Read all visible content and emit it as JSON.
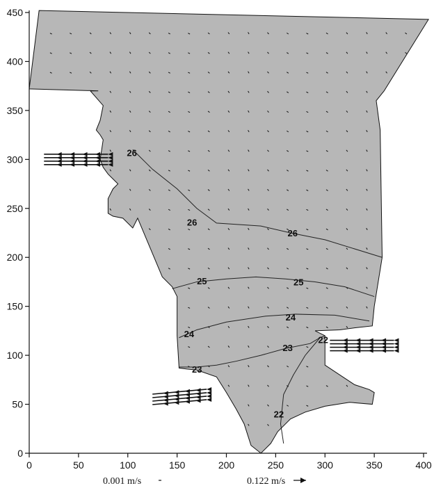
{
  "chart_data": {
    "type": "vector-contour",
    "title": "",
    "xlabel": "",
    "ylabel": "",
    "xlim": [
      0,
      400
    ],
    "ylim": [
      0,
      450
    ],
    "x_ticks": [
      "0",
      "50",
      "100",
      "150",
      "200",
      "250",
      "300",
      "350",
      "400"
    ],
    "y_ticks": [
      "0",
      "50",
      "100",
      "150",
      "200",
      "250",
      "300",
      "350",
      "400",
      "450"
    ],
    "grid": false,
    "domain_boundary": [
      [
        10,
        452
      ],
      [
        405,
        443
      ],
      [
        360,
        370
      ],
      [
        352,
        360
      ],
      [
        356,
        330
      ],
      [
        358,
        200
      ],
      [
        350,
        150
      ],
      [
        348,
        130
      ],
      [
        330,
        128
      ],
      [
        315,
        126
      ],
      [
        290,
        125
      ],
      [
        300,
        120
      ],
      [
        300,
        90
      ],
      [
        315,
        80
      ],
      [
        330,
        70
      ],
      [
        345,
        65
      ],
      [
        350,
        62
      ],
      [
        348,
        50
      ],
      [
        325,
        52
      ],
      [
        300,
        48
      ],
      [
        280,
        42
      ],
      [
        265,
        35
      ],
      [
        252,
        22
      ],
      [
        245,
        10
      ],
      [
        235,
        0
      ],
      [
        225,
        8
      ],
      [
        218,
        30
      ],
      [
        210,
        45
      ],
      [
        200,
        62
      ],
      [
        190,
        78
      ],
      [
        170,
        85
      ],
      [
        160,
        86
      ],
      [
        152,
        87
      ],
      [
        150,
        120
      ],
      [
        150,
        160
      ],
      [
        145,
        170
      ],
      [
        135,
        180
      ],
      [
        130,
        192
      ],
      [
        110,
        240
      ],
      [
        105,
        230
      ],
      [
        95,
        240
      ],
      [
        85,
        242
      ],
      [
        80,
        245
      ],
      [
        80,
        260
      ],
      [
        85,
        270
      ],
      [
        90,
        275
      ],
      [
        85,
        280
      ],
      [
        80,
        285
      ],
      [
        75,
        292
      ],
      [
        72,
        300
      ],
      [
        75,
        320
      ],
      [
        72,
        325
      ],
      [
        68,
        330
      ],
      [
        72,
        340
      ],
      [
        75,
        355
      ],
      [
        62,
        370
      ],
      [
        70,
        370
      ],
      [
        0,
        372
      ]
    ],
    "contours": [
      {
        "label": "26",
        "level": 26,
        "points": [
          [
            105,
            310
          ],
          [
            125,
            290
          ],
          [
            150,
            270
          ],
          [
            170,
            250
          ],
          [
            190,
            235
          ],
          [
            235,
            232
          ],
          [
            265,
            225
          ],
          [
            300,
            218
          ],
          [
            358,
            200
          ]
        ],
        "labels_at": [
          [
            104,
            307
          ],
          [
            165,
            236
          ],
          [
            267,
            225
          ]
        ]
      },
      {
        "label": "25",
        "level": 25,
        "points": [
          [
            145,
            168
          ],
          [
            170,
            175
          ],
          [
            200,
            178
          ],
          [
            230,
            180
          ],
          [
            260,
            178
          ],
          [
            290,
            175
          ],
          [
            320,
            170
          ],
          [
            350,
            160
          ]
        ],
        "labels_at": [
          [
            175,
            176
          ],
          [
            273,
            175
          ]
        ]
      },
      {
        "label": "24",
        "level": 24,
        "points": [
          [
            152,
            118
          ],
          [
            170,
            126
          ],
          [
            200,
            134
          ],
          [
            240,
            140
          ],
          [
            270,
            142
          ],
          [
            310,
            141
          ],
          [
            345,
            135
          ]
        ],
        "labels_at": [
          [
            162,
            122
          ],
          [
            265,
            139
          ]
        ]
      },
      {
        "label": "23",
        "level": 23,
        "points": [
          [
            152,
            88
          ],
          [
            170,
            88
          ],
          [
            190,
            90
          ],
          [
            210,
            94
          ],
          [
            235,
            100
          ],
          [
            260,
            107
          ],
          [
            285,
            112
          ],
          [
            295,
            118
          ],
          [
            300,
            120
          ]
        ],
        "labels_at": [
          [
            170,
            86
          ],
          [
            262,
            108
          ]
        ]
      },
      {
        "label": "22",
        "level": 22,
        "points": [
          [
            295,
            118
          ],
          [
            280,
            100
          ],
          [
            268,
            80
          ],
          [
            258,
            60
          ],
          [
            255,
            30
          ],
          [
            258,
            10
          ]
        ],
        "labels_at": [
          [
            253,
            40
          ],
          [
            298,
            116
          ]
        ]
      }
    ],
    "inflows": [
      {
        "direction": "left",
        "start": [
          80,
          300
        ],
        "end": [
          15,
          300
        ],
        "count": 4
      },
      {
        "direction": "left",
        "start": [
          370,
          110
        ],
        "end": [
          305,
          110
        ],
        "count": 4
      },
      {
        "direction": "left",
        "start": [
          180,
          60
        ],
        "end": [
          125,
          55
        ],
        "count": 4
      }
    ],
    "legend": [
      {
        "label": "0.001 m/s"
      },
      {
        "label": "0.122 m/s"
      }
    ]
  }
}
